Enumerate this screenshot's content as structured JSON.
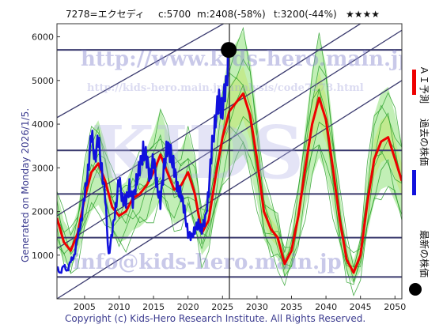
{
  "header": {
    "code": "7278=エクセディ",
    "current": "c:5700",
    "min": "m:2408(-58%)",
    "target": "t:3200(-44%)",
    "stars": "★★★★"
  },
  "watermarks": {
    "url": "http://www.kids-hero.main.jp/",
    "analysis_url": "http://kids-hero.main.jp/analysis/code7278.html",
    "email": "info@kids-hero.main.jp",
    "big": "KIDS"
  },
  "generated": "Generated on Monday 2026/1/5.",
  "copyright": "Copyright (c) Kids-Hero Research Institute. All Rights Reserved.",
  "legend": {
    "ai_forecast": "ＡＩ予測",
    "past_price": "過去の株価",
    "latest_price": "最新の株価"
  },
  "colors": {
    "ai": "#ee0000",
    "past": "#1111dd",
    "latest": "#000000",
    "band_fill": "#8fe27a",
    "band_line": "#2aa02a",
    "yellow": "#fff3a0",
    "trend": "#3a3a6e"
  },
  "chart_data": {
    "type": "line",
    "title": "7278=エクセディ",
    "xlim": [
      2001,
      2051
    ],
    "ylim": [
      0,
      6300
    ],
    "x_ticks": [
      2005,
      2010,
      2015,
      2020,
      2025,
      2030,
      2035,
      2040,
      2045,
      2050
    ],
    "y_ticks": [
      1000,
      2000,
      3000,
      4000,
      5000,
      6000
    ],
    "hlines": [
      500,
      1400,
      2400,
      3400,
      5700
    ],
    "current_year": 2026,
    "latest_point": {
      "x": 2025.9,
      "y": 5700
    },
    "trend_lines": [
      {
        "x": [
          2001,
          2051
        ],
        "y": [
          4150,
          8600
        ]
      },
      {
        "x": [
          2001,
          2051
        ],
        "y": [
          1900,
          6900
        ]
      },
      {
        "x": [
          2001,
          2051
        ],
        "y": [
          1150,
          6150
        ]
      },
      {
        "x": [
          2001,
          2051
        ],
        "y": [
          0,
          5000
        ]
      }
    ],
    "series": [
      {
        "name": "過去の株価",
        "x": [
          2001.0,
          2001.5,
          2002.0,
          2002.5,
          2003.0,
          2003.5,
          2004.0,
          2004.5,
          2005.0,
          2005.5,
          2006.0,
          2006.5,
          2007.0,
          2007.5,
          2008.0,
          2008.5,
          2009.0,
          2009.5,
          2010.0,
          2010.5,
          2011.0,
          2011.5,
          2012.0,
          2012.5,
          2013.0,
          2013.5,
          2014.0,
          2014.5,
          2015.0,
          2015.5,
          2016.0,
          2016.5,
          2017.0,
          2017.5,
          2018.0,
          2018.5,
          2019.0,
          2019.5,
          2020.0,
          2020.5,
          2021.0,
          2021.5,
          2022.0,
          2022.5,
          2023.0,
          2023.5,
          2024.0,
          2024.5,
          2025.0,
          2025.5,
          2025.9
        ],
        "y": [
          700,
          600,
          750,
          650,
          850,
          1000,
          1400,
          1800,
          2300,
          3000,
          3700,
          3300,
          3600,
          3000,
          2300,
          1000,
          1500,
          2100,
          2700,
          2300,
          2200,
          2600,
          2200,
          2700,
          3000,
          3400,
          3200,
          2800,
          3200,
          2600,
          2200,
          3000,
          3500,
          3300,
          3000,
          2500,
          2400,
          2000,
          1500,
          1400,
          1600,
          1700,
          1600,
          1800,
          2500,
          3500,
          4200,
          4500,
          4400,
          4800,
          5700
        ]
      },
      {
        "name": "ＡＩ予測",
        "x": [
          2001,
          2002,
          2003,
          2004,
          2005,
          2006,
          2007,
          2008,
          2009,
          2010,
          2011,
          2012,
          2013,
          2014,
          2015,
          2016,
          2017,
          2018,
          2019,
          2020,
          2021,
          2022,
          2023,
          2024,
          2025,
          2026,
          2027,
          2028,
          2029,
          2030,
          2031,
          2032,
          2033,
          2034,
          2035,
          2036,
          2037,
          2038,
          2039,
          2040,
          2041,
          2042,
          2043,
          2044,
          2045,
          2046,
          2047,
          2048,
          2049,
          2050,
          2051
        ],
        "y": [
          1850,
          1300,
          1100,
          1500,
          2300,
          2900,
          3100,
          2700,
          2100,
          1900,
          2000,
          2300,
          2400,
          2600,
          2900,
          3300,
          2900,
          2500,
          2600,
          2900,
          2400,
          1500,
          1800,
          2800,
          3700,
          4300,
          4500,
          4700,
          4200,
          3200,
          2000,
          1600,
          1400,
          800,
          1100,
          1900,
          3000,
          4000,
          4600,
          4100,
          3000,
          1800,
          900,
          600,
          1000,
          2200,
          3200,
          3600,
          3700,
          3200,
          2700
        ]
      }
    ]
  }
}
